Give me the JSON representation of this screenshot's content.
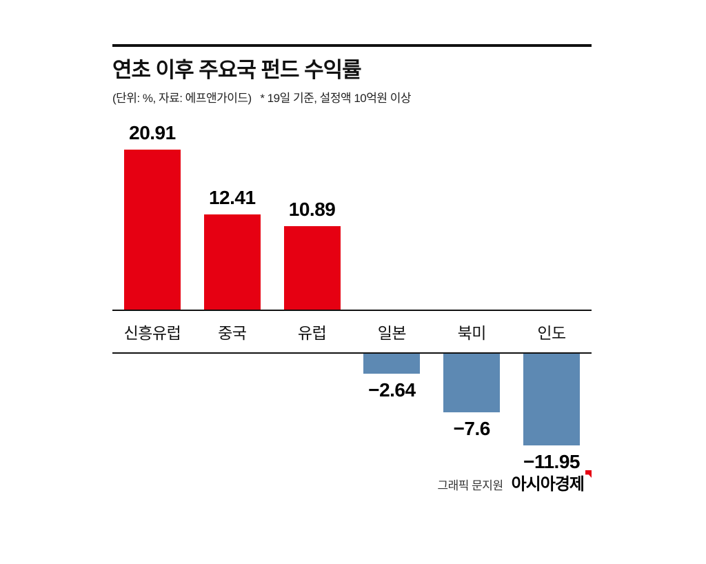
{
  "header": {
    "title": "연초 이후 주요국 펀드 수익률",
    "subtitle": "(단위: %, 자료: 에프앤가이드)   * 19일 기준, 설정액 10억원 이상"
  },
  "chart_data": {
    "type": "bar",
    "title": "연초 이후 주요국 펀드 수익률",
    "unit": "%",
    "source": "에프앤가이드",
    "note": "* 19일 기준, 설정액 10억원 이상",
    "categories": [
      "신흥유럽",
      "중국",
      "유럽",
      "일본",
      "북미",
      "인도"
    ],
    "values": [
      20.91,
      12.41,
      10.89,
      -2.64,
      -7.6,
      -11.95
    ],
    "value_labels": [
      "20.91",
      "12.41",
      "10.89",
      "−2.64",
      "−7.6",
      "−11.95"
    ],
    "positive_color": "#e60012",
    "negative_color": "#5d89b3",
    "ylim": [
      -12,
      21
    ],
    "grid": false,
    "legend": "none"
  },
  "footer": {
    "credit": "그래픽 문지원",
    "logo": "아시아경제"
  }
}
